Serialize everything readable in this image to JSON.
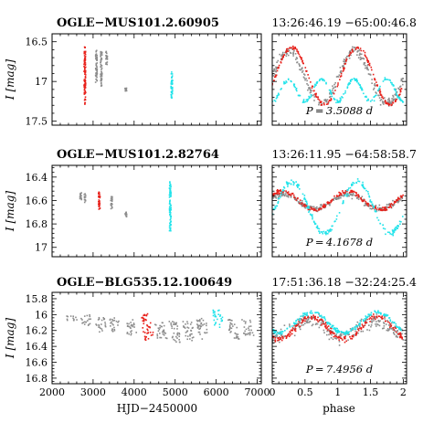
{
  "colors": {
    "red": "#e8201a",
    "gray": "#8c8c8c",
    "cyan": "#22e3ea",
    "frame": "#000000"
  },
  "chart_data": [
    {
      "type": "scatter",
      "title": "OGLE−MUS101.2.60905",
      "coordinates": "13:26:46.19  −65:00:46.8",
      "period_label": "P = 3.5088 d",
      "ylabel": "I [mag]",
      "ylim": [
        17.55,
        16.4
      ],
      "y_ticks": [
        16.5,
        17,
        17.5
      ],
      "y_tick_labels": [
        "16.5",
        "17",
        "17.5"
      ],
      "light_curve_xlim": [
        2000,
        7100
      ],
      "phase_xlim": [
        0,
        2.05
      ],
      "series": [
        {
          "color": "red",
          "segments": [
            [
              2800,
              16.56,
              17.29
            ]
          ]
        },
        {
          "color": "gray",
          "segments": [
            [
              3080,
              16.6,
              17.02
            ],
            [
              3200,
              16.62,
              17.06
            ],
            [
              3330,
              16.62,
              16.8
            ],
            [
              3800,
              17.08,
              17.12
            ]
          ]
        },
        {
          "color": "cyan",
          "segments": [
            [
              4920,
              16.88,
              17.22
            ]
          ]
        }
      ],
      "phase_curves": [
        {
          "color": "gray",
          "mean": 16.95,
          "amplitude": 0.33,
          "peak_phase": 0.25,
          "scatter": 0.05
        },
        {
          "color": "red",
          "mean": 16.93,
          "amplitude": 0.36,
          "peak_phase": 0.3,
          "scatter": 0.02
        },
        {
          "color": "cyan",
          "mean": 17.11,
          "amplitude": 0.14,
          "peak_phase": 0.25,
          "scatter": 0.02,
          "double_wave": true
        }
      ]
    },
    {
      "type": "scatter",
      "title": "OGLE−MUS101.2.82764",
      "coordinates": "13:26:11.95  −64:58:58.7",
      "period_label": "P = 4.1678 d",
      "ylabel": "I [mag]",
      "ylim": [
        17.08,
        16.3
      ],
      "y_ticks": [
        16.4,
        16.6,
        16.8,
        17
      ],
      "y_tick_labels": [
        "16.4",
        "16.6",
        "16.8",
        "17"
      ],
      "light_curve_xlim": [
        2000,
        7100
      ],
      "phase_xlim": [
        0,
        2.05
      ],
      "series": [
        {
          "color": "gray",
          "segments": [
            [
              2700,
              16.53,
              16.62
            ],
            [
              2800,
              16.54,
              16.62
            ],
            [
              3450,
              16.56,
              16.67
            ],
            [
              3800,
              16.7,
              16.74
            ]
          ]
        },
        {
          "color": "red",
          "segments": [
            [
              3150,
              16.52,
              16.68
            ]
          ]
        },
        {
          "color": "cyan",
          "segments": [
            [
              4880,
              16.44,
              16.86
            ]
          ]
        }
      ],
      "phase_curves": [
        {
          "color": "gray",
          "mean": 16.61,
          "amplitude": 0.06,
          "peak_phase": 0.15,
          "scatter": 0.02
        },
        {
          "color": "red",
          "mean": 16.6,
          "amplitude": 0.08,
          "peak_phase": 0.15,
          "scatter": 0.015
        },
        {
          "color": "cyan",
          "mean": 16.66,
          "amplitude": 0.22,
          "peak_phase": 0.3,
          "scatter": 0.02
        }
      ]
    },
    {
      "type": "scatter",
      "title": "OGLE−BLG535.12.100649",
      "coordinates": "17:51:36.18  −32:24:25.4",
      "period_label": "P = 7.4956 d",
      "ylabel": "I [mag]",
      "ylim": [
        16.87,
        15.72
      ],
      "y_ticks": [
        15.8,
        16,
        16.2,
        16.4,
        16.6,
        16.8
      ],
      "y_tick_labels": [
        "15.8",
        "16",
        "16.2",
        "16.4",
        "16.6",
        "16.8"
      ],
      "light_curve_xlim": [
        2000,
        7100
      ],
      "phase_xlim": [
        0,
        2.05
      ],
      "series": [
        {
          "color": "gray",
          "segments": [
            [
              2450,
              15.98,
              16.08
            ],
            [
              2800,
              16.0,
              16.16
            ],
            [
              3150,
              16.03,
              16.22
            ],
            [
              3500,
              16.04,
              16.22
            ],
            [
              3870,
              16.06,
              16.26
            ],
            [
              4600,
              16.08,
              16.32
            ],
            [
              4950,
              16.08,
              16.35
            ],
            [
              5280,
              16.08,
              16.33
            ],
            [
              5620,
              16.05,
              16.33
            ],
            [
              6380,
              16.06,
              16.32
            ],
            [
              6720,
              16.06,
              16.27
            ]
          ]
        },
        {
          "color": "red",
          "segments": [
            [
              4250,
              15.99,
              16.33
            ]
          ]
        },
        {
          "color": "cyan",
          "segments": [
            [
              6000,
              15.94,
              16.16
            ]
          ]
        }
      ],
      "phase_curves": [
        {
          "color": "gray",
          "mean": 16.17,
          "amplitude": 0.11,
          "peak_phase": 0.55,
          "scatter": 0.08
        },
        {
          "color": "red",
          "mean": 16.17,
          "amplitude": 0.14,
          "peak_phase": 0.6,
          "scatter": 0.03
        },
        {
          "color": "cyan",
          "mean": 16.1,
          "amplitude": 0.13,
          "peak_phase": 0.6,
          "scatter": 0.02
        }
      ]
    }
  ],
  "axes": {
    "light_curve_xlabel": "HJD−2450000",
    "light_curve_x_ticks": [
      2000,
      3000,
      4000,
      5000,
      6000,
      7000
    ],
    "light_curve_x_tick_labels": [
      "2000",
      "3000",
      "4000",
      "5000",
      "6000",
      "7000"
    ],
    "phase_xlabel": "phase",
    "phase_x_ticks": [
      0,
      0.5,
      1,
      1.5,
      2
    ],
    "phase_x_tick_labels": [
      "0",
      "0.5",
      "1",
      "1.5",
      "2"
    ]
  }
}
